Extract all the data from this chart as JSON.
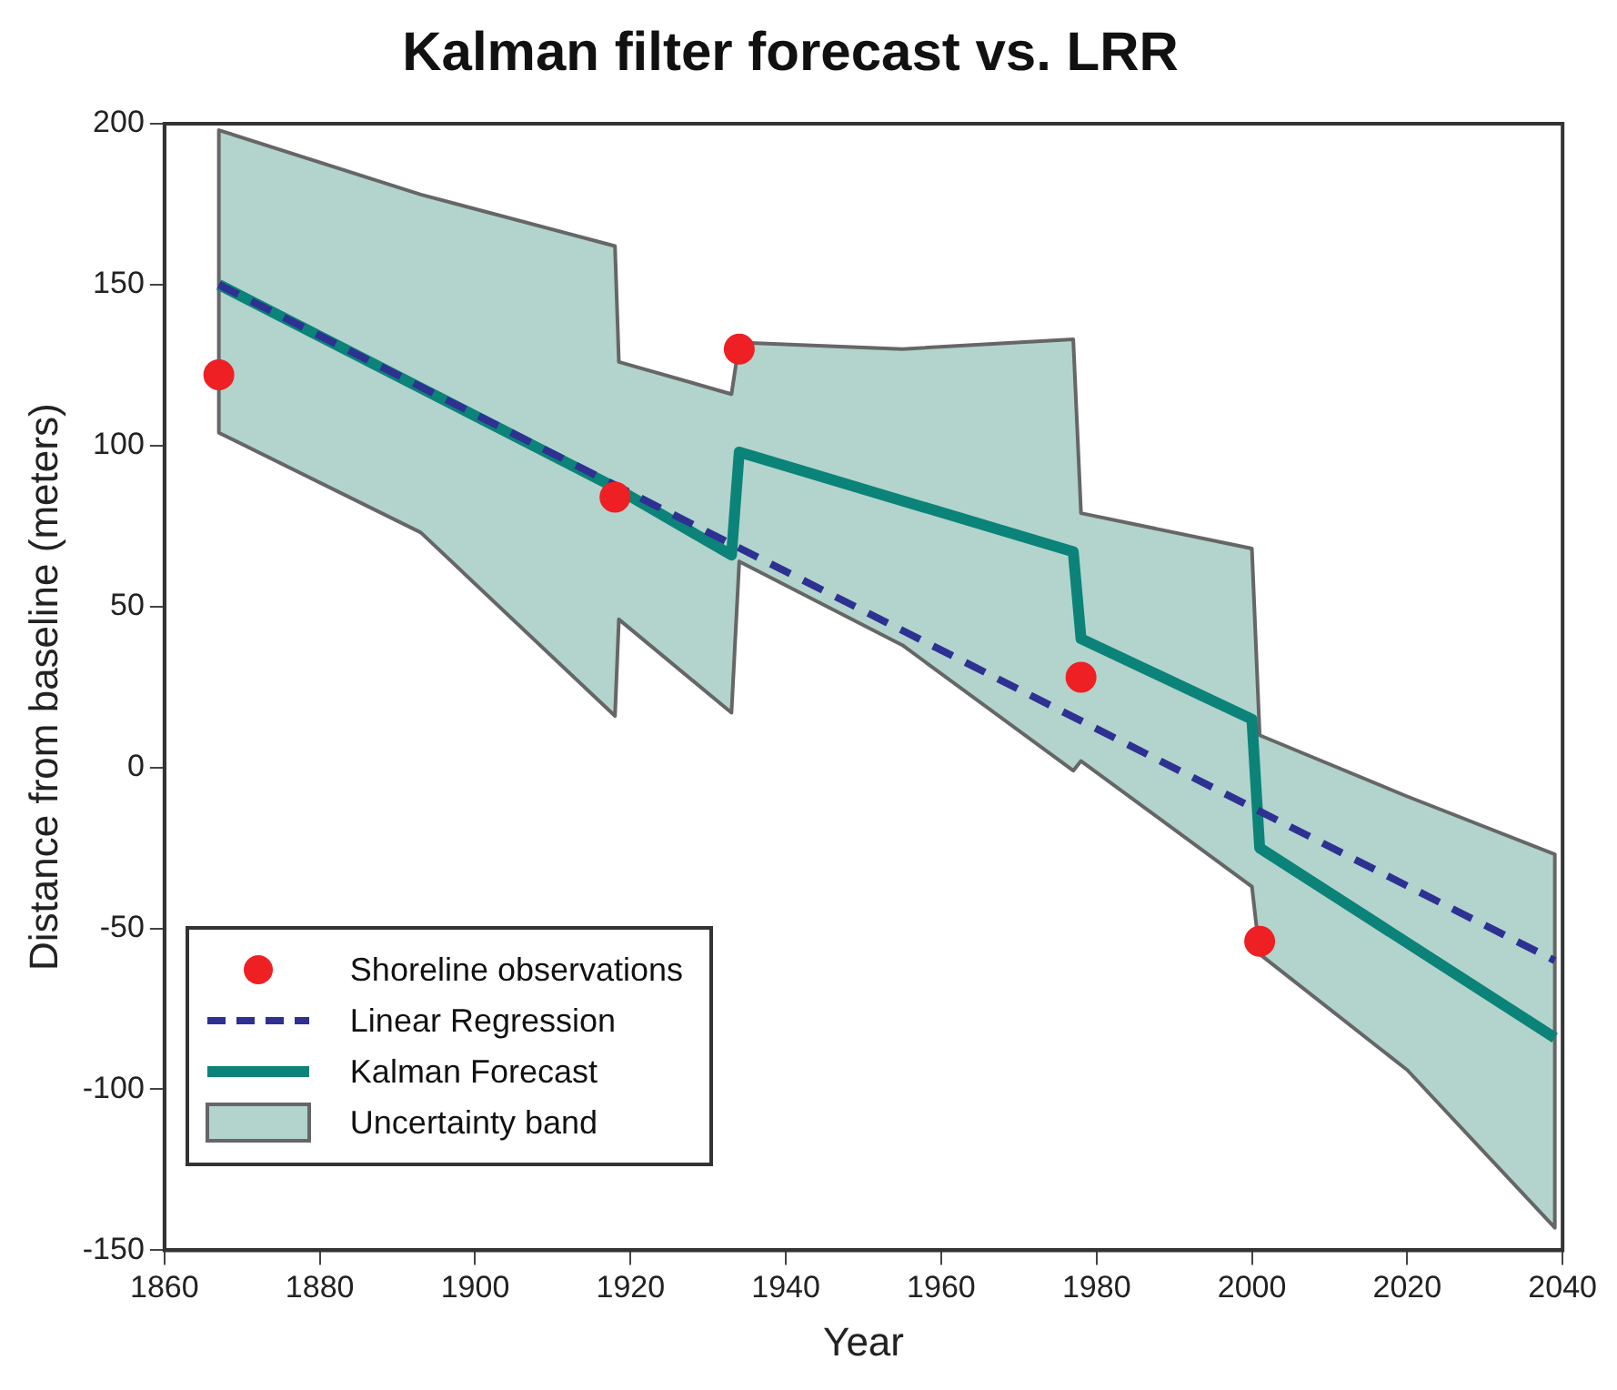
{
  "chart_data": {
    "type": "line",
    "title": "Kalman filter forecast vs. LRR",
    "xlabel": "Year",
    "ylabel": "Distance from baseline (meters)",
    "xlim": [
      1860,
      2040
    ],
    "xticks": [
      1860,
      1880,
      1900,
      1920,
      1940,
      1960,
      1980,
      2000,
      2020,
      2040
    ],
    "ylim": [
      -150,
      200
    ],
    "yticks": [
      -150,
      -100,
      -50,
      0,
      50,
      100,
      150,
      200
    ],
    "grid": false,
    "legend": "bottom left",
    "series": [
      {
        "name": "Shoreline observations",
        "type": "scatter",
        "marker": "circle",
        "color": "#ee2024",
        "x": [
          1867,
          1918,
          1934,
          1978,
          2001
        ],
        "values": [
          122,
          84,
          130,
          28,
          -54
        ]
      },
      {
        "name": "Linear Regression",
        "type": "line",
        "line_style": "dashed",
        "color": "#2e3192",
        "x": [
          1867,
          2039
        ],
        "values": [
          150,
          -60
        ]
      },
      {
        "name": "Kalman Forecast",
        "type": "line",
        "line_style": "solid",
        "color": "#0b8378",
        "x": [
          1867,
          1918,
          1933,
          1934,
          1977,
          1978,
          2000,
          2001,
          2039
        ],
        "values": [
          150,
          87,
          66,
          98,
          67,
          40,
          15,
          -25,
          -84
        ]
      },
      {
        "name": "Uncertainty band",
        "type": "area",
        "color": "#b2d4cd",
        "x": [
          1867,
          1893,
          1918,
          1918.5,
          1933,
          1934,
          1955,
          1977,
          1978,
          2000,
          2001,
          2020,
          2039
        ],
        "values": [
          null,
          null,
          null,
          null,
          null,
          null,
          null,
          null,
          null,
          null,
          null,
          null,
          null
        ],
        "lower": [
          104,
          73,
          16,
          46,
          17,
          64,
          38,
          -1,
          2,
          -37,
          -58,
          -94,
          -143
        ],
        "upper": [
          198,
          178,
          162,
          126,
          116,
          132,
          130,
          133,
          79,
          68,
          10,
          -9,
          -27
        ]
      }
    ]
  }
}
